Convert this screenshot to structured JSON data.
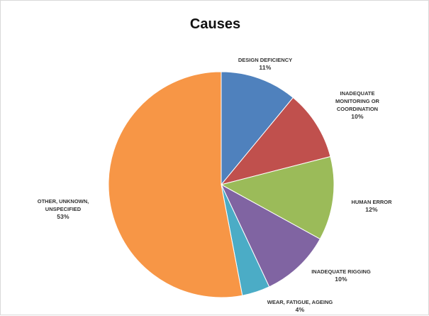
{
  "chart_data": {
    "type": "pie",
    "title": "Causes",
    "categories": [
      "Design deficiency",
      "Inadequate monitoring or coordination",
      "Human error",
      "Inadequate rigging",
      "Wear, fatigue, ageing",
      "Other, unknown, unspecified"
    ],
    "values": [
      11,
      10,
      12,
      10,
      4,
      53
    ],
    "percent_labels": [
      "11%",
      "10%",
      "12%",
      "10%",
      "4%",
      "53%"
    ],
    "colors": [
      "#4f81bd",
      "#c0504d",
      "#9bbb59",
      "#8064a2",
      "#4bacc6",
      "#f79646"
    ],
    "start_angle_deg": 0,
    "direction": "clockwise",
    "legend": "none"
  }
}
